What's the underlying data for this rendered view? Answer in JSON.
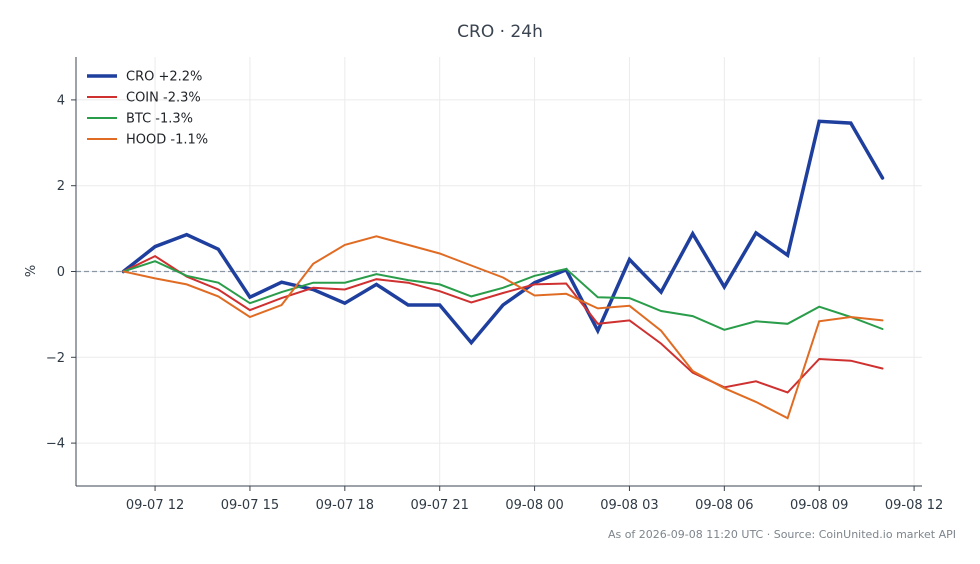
{
  "chart_data": {
    "type": "line",
    "title": "CRO · 24h",
    "xlabel": "",
    "ylabel": "%",
    "ylim": [
      -5,
      5
    ],
    "yticks": [
      -4,
      -2,
      0,
      2,
      4
    ],
    "ytick_labels": [
      "−4",
      "−2",
      "0",
      "2",
      "4"
    ],
    "xlim": [
      "2026-09-07 09:30",
      "2026-09-08 12:15"
    ],
    "xticks": [
      "2026-09-07 12:00",
      "2026-09-07 15:00",
      "2026-09-07 18:00",
      "2026-09-07 21:00",
      "2026-09-08 00:00",
      "2026-09-08 03:00",
      "2026-09-08 06:00",
      "2026-09-08 09:00",
      "2026-09-08 12:00"
    ],
    "xtick_labels": [
      "09-07 12",
      "09-07 15",
      "09-07 18",
      "09-07 21",
      "09-08 00",
      "09-08 03",
      "09-08 06",
      "09-08 09",
      "09-08 12"
    ],
    "grid": true,
    "zero_line": true,
    "legend_position": "top-left",
    "x": [
      "2026-09-07 11:00",
      "2026-09-07 12:00",
      "2026-09-07 13:00",
      "2026-09-07 14:00",
      "2026-09-07 15:00",
      "2026-09-07 16:00",
      "2026-09-07 17:00",
      "2026-09-07 18:00",
      "2026-09-07 19:00",
      "2026-09-07 20:00",
      "2026-09-07 21:00",
      "2026-09-07 22:00",
      "2026-09-07 23:00",
      "2026-09-08 00:00",
      "2026-09-08 01:00",
      "2026-09-08 02:00",
      "2026-09-08 03:00",
      "2026-09-08 04:00",
      "2026-09-08 05:00",
      "2026-09-08 06:00",
      "2026-09-08 07:00",
      "2026-09-08 08:00",
      "2026-09-08 09:00",
      "2026-09-08 10:00",
      "2026-09-08 11:00"
    ],
    "series": [
      {
        "name": "CRO +2.2%",
        "color": "#1f3f9e",
        "width": 3.5,
        "values": [
          0,
          0.58,
          0.86,
          0.52,
          -0.6,
          -0.25,
          -0.42,
          -0.74,
          -0.3,
          -0.78,
          -0.78,
          -1.66,
          -0.78,
          -0.26,
          0.04,
          -1.38,
          0.28,
          -0.48,
          0.88,
          -0.36,
          0.9,
          0.38,
          3.5,
          3.46,
          2.18
        ]
      },
      {
        "name": "COIN -2.3%",
        "color": "#cf3030",
        "width": 2,
        "values": [
          0,
          0.36,
          -0.12,
          -0.42,
          -0.9,
          -0.62,
          -0.38,
          -0.42,
          -0.18,
          -0.26,
          -0.46,
          -0.72,
          -0.5,
          -0.3,
          -0.28,
          -1.22,
          -1.14,
          -1.68,
          -2.36,
          -2.7,
          -2.56,
          -2.82,
          -2.04,
          -2.08,
          -2.26
        ]
      },
      {
        "name": "BTC -1.3%",
        "color": "#2a9d4a",
        "width": 2,
        "values": [
          0,
          0.24,
          -0.1,
          -0.26,
          -0.74,
          -0.48,
          -0.26,
          -0.26,
          -0.06,
          -0.2,
          -0.3,
          -0.58,
          -0.38,
          -0.1,
          0.06,
          -0.6,
          -0.62,
          -0.92,
          -1.04,
          -1.36,
          -1.16,
          -1.22,
          -0.82,
          -1.06,
          -1.34
        ]
      },
      {
        "name": "HOOD -1.1%",
        "color": "#e06c24",
        "width": 2,
        "values": [
          0,
          -0.16,
          -0.3,
          -0.58,
          -1.06,
          -0.78,
          0.18,
          0.62,
          0.82,
          0.62,
          0.42,
          0.14,
          -0.14,
          -0.56,
          -0.52,
          -0.86,
          -0.8,
          -1.38,
          -2.32,
          -2.72,
          -3.04,
          -3.42,
          -1.16,
          -1.06,
          -1.14
        ]
      }
    ],
    "source": "As of 2026-09-08 11:20 UTC · Source: CoinUnited.io market API"
  }
}
